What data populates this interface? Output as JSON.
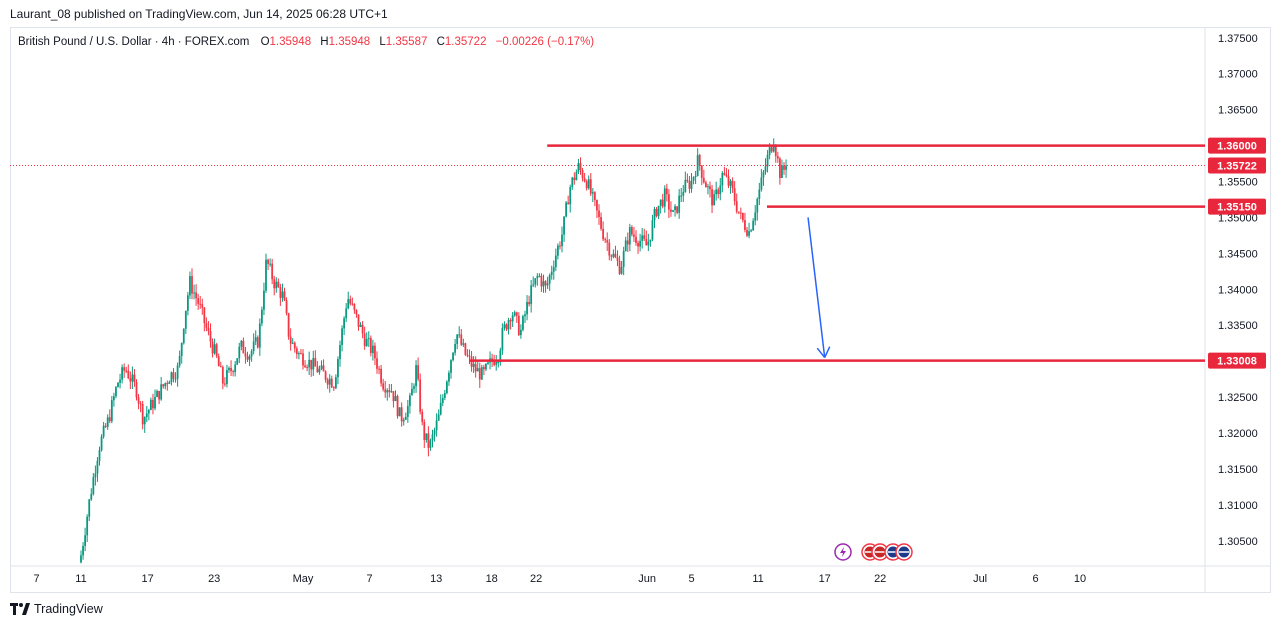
{
  "header": {
    "published": "Laurant_08 published on TradingView.com, Jun 14, 2025 06:28 UTC+1"
  },
  "legend": {
    "symbol": "British Pound / U.S. Dollar · 4h · FOREX.com",
    "o_label": "O",
    "o_value": "1.35948",
    "h_label": "H",
    "h_value": "1.35948",
    "l_label": "L",
    "l_value": "1.35587",
    "c_label": "C",
    "c_value": "1.35722",
    "change": "−0.00226 (−0.17%)"
  },
  "footer": {
    "brand": "TradingView"
  },
  "colors": {
    "up": "#089981",
    "down": "#f23645",
    "level_line": "#e8263c",
    "arrow": "#2962ff",
    "grid_text": "#131722"
  },
  "chart_data": {
    "type": "candlestick",
    "symbol": "GBPUSD",
    "timeframe": "4h",
    "ylim": [
      1.3015,
      1.3765
    ],
    "y_ticks": [
      1.305,
      1.31,
      1.315,
      1.32,
      1.325,
      1.33,
      1.335,
      1.34,
      1.345,
      1.35,
      1.355,
      1.36,
      1.365,
      1.37,
      1.375
    ],
    "y_tick_labels": [
      "1.30500",
      "1.31000",
      "1.31500",
      "1.32000",
      "1.32500",
      "1.33000",
      "1.33500",
      "1.34000",
      "1.34500",
      "1.35000",
      "1.35500",
      "1.36000",
      "1.36500",
      "1.37000",
      "1.37500"
    ],
    "x_ticks": [
      {
        "label": "7",
        "day": -4
      },
      {
        "label": "11",
        "day": 0
      },
      {
        "label": "17",
        "day": 6
      },
      {
        "label": "23",
        "day": 12
      },
      {
        "label": "May",
        "day": 20
      },
      {
        "label": "7",
        "day": 26
      },
      {
        "label": "13",
        "day": 32
      },
      {
        "label": "18",
        "day": 37
      },
      {
        "label": "22",
        "day": 41
      },
      {
        "label": "Jun",
        "day": 51
      },
      {
        "label": "5",
        "day": 55
      },
      {
        "label": "11",
        "day": 61
      },
      {
        "label": "17",
        "day": 67
      },
      {
        "label": "22",
        "day": 72
      },
      {
        "label": "Jul",
        "day": 81
      },
      {
        "label": "6",
        "day": 86
      },
      {
        "label": "10",
        "day": 90
      }
    ],
    "price_path": [
      [
        0.0,
        1.303
      ],
      [
        0.8,
        1.311
      ],
      [
        1.6,
        1.318
      ],
      [
        2.5,
        1.322
      ],
      [
        3.3,
        1.327
      ],
      [
        4.0,
        1.329
      ],
      [
        5.0,
        1.326
      ],
      [
        5.6,
        1.322
      ],
      [
        6.4,
        1.324
      ],
      [
        7.2,
        1.326
      ],
      [
        8.0,
        1.328
      ],
      [
        8.8,
        1.329
      ],
      [
        9.3,
        1.336
      ],
      [
        9.8,
        1.341
      ],
      [
        10.6,
        1.338
      ],
      [
        11.4,
        1.334
      ],
      [
        12.1,
        1.331
      ],
      [
        12.8,
        1.327
      ],
      [
        13.6,
        1.329
      ],
      [
        14.4,
        1.332
      ],
      [
        15.2,
        1.331
      ],
      [
        16.0,
        1.333
      ],
      [
        16.7,
        1.344
      ],
      [
        17.4,
        1.341
      ],
      [
        18.2,
        1.339
      ],
      [
        18.8,
        1.333
      ],
      [
        19.6,
        1.331
      ],
      [
        20.4,
        1.33
      ],
      [
        21.2,
        1.329
      ],
      [
        22.0,
        1.328
      ],
      [
        22.8,
        1.327
      ],
      [
        23.4,
        1.333
      ],
      [
        24.0,
        1.339
      ],
      [
        24.8,
        1.336
      ],
      [
        25.6,
        1.333
      ],
      [
        26.4,
        1.331
      ],
      [
        27.2,
        1.327
      ],
      [
        28.0,
        1.326
      ],
      [
        28.8,
        1.322
      ],
      [
        29.6,
        1.324
      ],
      [
        30.2,
        1.329
      ],
      [
        30.8,
        1.32
      ],
      [
        31.4,
        1.318
      ],
      [
        32.2,
        1.322
      ],
      [
        33.0,
        1.328
      ],
      [
        33.8,
        1.334
      ],
      [
        34.6,
        1.331
      ],
      [
        35.4,
        1.329
      ],
      [
        36.2,
        1.328
      ],
      [
        37.0,
        1.33
      ],
      [
        37.6,
        1.331
      ],
      [
        38.0,
        1.334
      ],
      [
        38.8,
        1.337
      ],
      [
        39.6,
        1.334
      ],
      [
        40.4,
        1.339
      ],
      [
        41.2,
        1.342
      ],
      [
        41.9,
        1.34
      ],
      [
        42.6,
        1.344
      ],
      [
        43.4,
        1.348
      ],
      [
        44.0,
        1.354
      ],
      [
        44.8,
        1.357
      ],
      [
        45.6,
        1.355
      ],
      [
        46.4,
        1.351
      ],
      [
        47.0,
        1.348
      ],
      [
        47.8,
        1.345
      ],
      [
        48.6,
        1.343
      ],
      [
        49.4,
        1.348
      ],
      [
        50.2,
        1.347
      ],
      [
        51.0,
        1.346
      ],
      [
        51.8,
        1.351
      ],
      [
        52.6,
        1.353
      ],
      [
        53.4,
        1.35
      ],
      [
        54.2,
        1.354
      ],
      [
        55.0,
        1.355
      ],
      [
        55.6,
        1.358
      ],
      [
        56.2,
        1.355
      ],
      [
        57.0,
        1.352
      ],
      [
        57.8,
        1.356
      ],
      [
        58.6,
        1.354
      ],
      [
        59.4,
        1.35
      ],
      [
        60.2,
        1.348
      ],
      [
        61.0,
        1.353
      ],
      [
        61.8,
        1.358
      ],
      [
        62.4,
        1.361
      ],
      [
        63.0,
        1.356
      ],
      [
        63.6,
        1.3572
      ]
    ],
    "last_price": 1.35722,
    "levels": [
      {
        "price": 1.36,
        "label": "1.36000",
        "from_day": 42.0
      },
      {
        "price": 1.3515,
        "label": "1.35150",
        "from_day": 61.8
      },
      {
        "price": 1.33008,
        "label": "1.33008",
        "from_day": 35.0
      }
    ],
    "current_price_label": "1.35722",
    "projection_arrow": {
      "from": [
        65.5,
        1.35
      ],
      "to": [
        67.0,
        1.3305
      ]
    },
    "event_markers": [
      "lightning-event",
      "us-flag-event",
      "us-flag-event",
      "uk-flag-event",
      "uk-flag-event"
    ]
  }
}
